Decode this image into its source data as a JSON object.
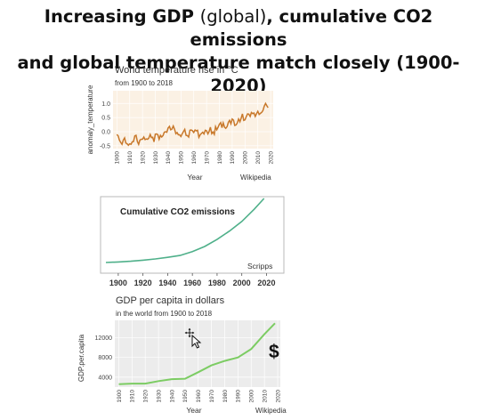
{
  "headline": {
    "line1_bold": "Increasing GDP",
    "line1_light": "(global)",
    "line1_rest": ", cumulative CO2 emissions",
    "line2": "and global temperature match closely (1900-2020)"
  },
  "colors": {
    "temperature_line": "#c8782a",
    "temperature_panel": "#fbf1e4",
    "co2_line": "#4fb08a",
    "gdp_line": "#7ccc63",
    "gdp_panel": "#ececec"
  },
  "cursor_icon": "move-cursor-icon",
  "dollar_sign": "$",
  "chart_data": [
    {
      "type": "line",
      "title": "World temperature rise in °C",
      "subtitle": "from 1900 to 2018",
      "xlabel": "Year",
      "ylabel": "anomaly_temperature",
      "source": "Wikipedia",
      "xlim": [
        1897,
        2022
      ],
      "ylim": [
        -0.6,
        1.45
      ],
      "xticks": [
        1900,
        1910,
        1920,
        1930,
        1940,
        1950,
        1960,
        1970,
        1980,
        1990,
        2000,
        2010,
        2020
      ],
      "yticks": [
        -0.5,
        0.0,
        0.5,
        1.0
      ],
      "ytick_labels": [
        "-0.5",
        "0.0",
        "0.5",
        "1.0"
      ],
      "grid": true,
      "series": [
        {
          "x": [
            1900,
            1901,
            1902,
            1903,
            1904,
            1905,
            1906,
            1907,
            1908,
            1909,
            1910,
            1911,
            1912,
            1913,
            1914,
            1915,
            1916,
            1917,
            1918,
            1919,
            1920,
            1921,
            1922,
            1923,
            1924,
            1925,
            1926,
            1927,
            1928,
            1929,
            1930,
            1931,
            1932,
            1933,
            1934,
            1935,
            1936,
            1937,
            1938,
            1939,
            1940,
            1941,
            1942,
            1943,
            1944,
            1945,
            1946,
            1947,
            1948,
            1949,
            1950,
            1951,
            1952,
            1953,
            1954,
            1955,
            1956,
            1957,
            1958,
            1959,
            1960,
            1961,
            1962,
            1963,
            1964,
            1965,
            1966,
            1967,
            1968,
            1969,
            1970,
            1971,
            1972,
            1973,
            1974,
            1975,
            1976,
            1977,
            1978,
            1979,
            1980,
            1981,
            1982,
            1983,
            1984,
            1985,
            1986,
            1987,
            1988,
            1989,
            1990,
            1991,
            1992,
            1993,
            1994,
            1995,
            1996,
            1997,
            1998,
            1999,
            2000,
            2001,
            2002,
            2003,
            2004,
            2005,
            2006,
            2007,
            2008,
            2009,
            2010,
            2011,
            2012,
            2013,
            2014,
            2015,
            2016,
            2017,
            2018
          ],
          "y": [
            -0.1,
            -0.15,
            -0.3,
            -0.38,
            -0.45,
            -0.3,
            -0.22,
            -0.4,
            -0.43,
            -0.48,
            -0.43,
            -0.45,
            -0.36,
            -0.35,
            -0.15,
            -0.13,
            -0.35,
            -0.45,
            -0.3,
            -0.27,
            -0.27,
            -0.19,
            -0.28,
            -0.26,
            -0.27,
            -0.22,
            -0.1,
            -0.21,
            -0.2,
            -0.36,
            -0.09,
            -0.08,
            -0.11,
            -0.27,
            -0.13,
            -0.19,
            -0.14,
            -0.02,
            -0.0,
            -0.02,
            0.13,
            0.19,
            0.07,
            0.09,
            0.2,
            0.09,
            -0.07,
            -0.03,
            -0.11,
            -0.11,
            -0.17,
            -0.07,
            0.01,
            0.08,
            -0.13,
            -0.14,
            -0.19,
            0.05,
            0.06,
            0.03,
            -0.03,
            0.06,
            0.03,
            0.05,
            -0.2,
            -0.11,
            -0.06,
            -0.02,
            -0.08,
            0.05,
            0.03,
            -0.08,
            0.01,
            0.16,
            -0.07,
            -0.01,
            -0.1,
            0.18,
            0.07,
            0.16,
            0.26,
            0.32,
            0.14,
            0.31,
            0.16,
            0.12,
            0.18,
            0.33,
            0.4,
            0.28,
            0.45,
            0.41,
            0.22,
            0.24,
            0.31,
            0.45,
            0.35,
            0.48,
            0.63,
            0.4,
            0.42,
            0.54,
            0.63,
            0.62,
            0.54,
            0.68,
            0.64,
            0.66,
            0.54,
            0.64,
            0.72,
            0.61,
            0.65,
            0.68,
            0.75,
            0.9,
            1.0,
            0.92,
            0.85
          ]
        }
      ]
    },
    {
      "type": "line",
      "title": "Cumulative CO2 emissions",
      "source": "Scripps",
      "xlim": [
        1890,
        2024
      ],
      "ylim": [
        0,
        1.0
      ],
      "xticks": [
        1900,
        1920,
        1940,
        1960,
        1980,
        2000,
        2020
      ],
      "grid": false,
      "series": [
        {
          "x": [
            1890,
            1900,
            1910,
            1920,
            1930,
            1940,
            1950,
            1960,
            1970,
            1980,
            1990,
            2000,
            2010,
            2018
          ],
          "y": [
            0.0,
            0.008,
            0.02,
            0.036,
            0.055,
            0.08,
            0.11,
            0.17,
            0.25,
            0.36,
            0.49,
            0.64,
            0.83,
            1.0
          ]
        }
      ]
    },
    {
      "type": "line",
      "title": "GDP per capita in dollars",
      "subtitle": "in the world from 1900 to 2018",
      "xlabel": "Year",
      "ylabel": "GDP.per.capita",
      "source": "Wikipedia",
      "xlim": [
        1897,
        2022
      ],
      "ylim": [
        2000,
        15500
      ],
      "xticks": [
        1900,
        1910,
        1920,
        1930,
        1940,
        1950,
        1960,
        1970,
        1980,
        1990,
        2000,
        2010,
        2020
      ],
      "yticks": [
        4000,
        8000,
        12000
      ],
      "ytick_labels": [
        "4000",
        "8000",
        "12000"
      ],
      "grid": true,
      "series": [
        {
          "x": [
            1900,
            1910,
            1920,
            1930,
            1940,
            1950,
            1960,
            1970,
            1980,
            1990,
            2000,
            2010,
            2018
          ],
          "y": [
            2600,
            2700,
            2700,
            3200,
            3600,
            3700,
            5000,
            6400,
            7300,
            8000,
            9700,
            12700,
            14900
          ]
        }
      ]
    }
  ]
}
